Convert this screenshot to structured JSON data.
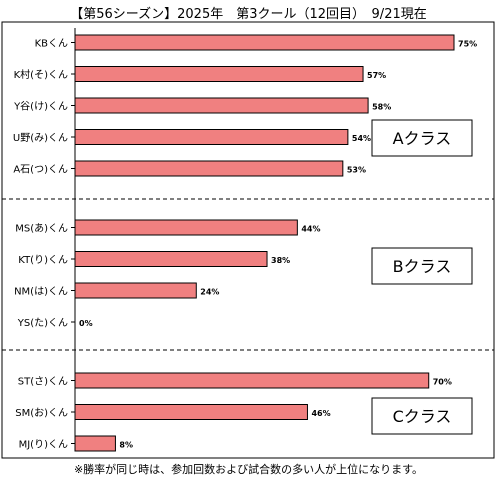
{
  "chart_data": {
    "type": "bar",
    "orientation": "horizontal",
    "title": "【第56シーズン】2025年　第3クール（12回目）　9/21現在",
    "xlim": [
      0,
      75
    ],
    "groups": [
      {
        "label": "Aクラス",
        "categories": [
          "KBくん",
          "K村(そ)くん",
          "Y谷(け)くん",
          "U野(み)くん",
          "A石(つ)くん"
        ],
        "values": [
          75,
          57,
          58,
          54,
          53
        ],
        "value_labels": [
          "75%",
          "57%",
          "58%",
          "54%",
          "53%"
        ]
      },
      {
        "label": "Bクラス",
        "categories": [
          "MS(あ)くん",
          "KT(り)くん",
          "NM(は)くん",
          "YS(た)くん"
        ],
        "values": [
          44,
          38,
          24,
          0
        ],
        "value_labels": [
          "44%",
          "38%",
          "24%",
          "0%"
        ]
      },
      {
        "label": "Cクラス",
        "categories": [
          "ST(さ)くん",
          "SM(お)くん",
          "MJ(り)くん"
        ],
        "values": [
          70,
          46,
          8
        ],
        "value_labels": [
          "70%",
          "46%",
          "8%"
        ]
      }
    ],
    "bar_color": "#f08080",
    "bar_stroke": "#000000",
    "grid": false,
    "legend": "none",
    "footnote": "※勝率が同じ時は、参加回数および試合数の多い人が上位になります。"
  }
}
